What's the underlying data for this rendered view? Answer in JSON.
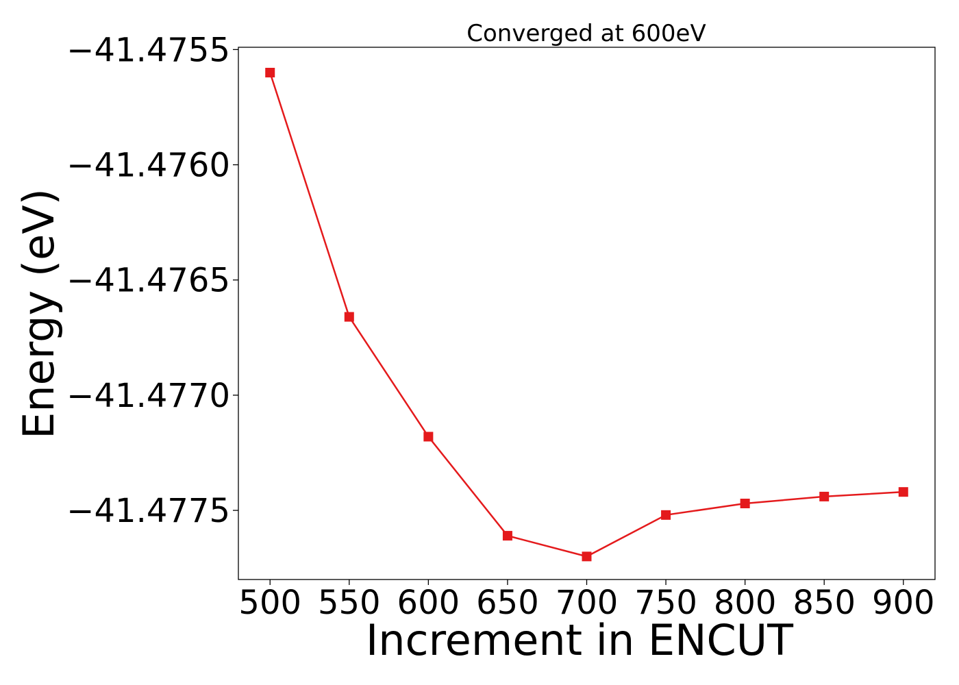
{
  "chart_data": {
    "type": "line",
    "title": "Converged at 600eV",
    "xlabel": "Increment in ENCUT",
    "ylabel": "Energy (eV)",
    "x": [
      500,
      550,
      600,
      650,
      700,
      750,
      800,
      850,
      900
    ],
    "series": [
      {
        "values": [
          -41.4756,
          -41.47666,
          -41.47718,
          -41.47761,
          -41.4777,
          -41.47752,
          -41.47747,
          -41.47744,
          -41.47742
        ],
        "color": "#e41a1c",
        "marker": "square"
      }
    ],
    "xlim": [
      480,
      920
    ],
    "ylim": [
      -41.4778,
      -41.47549
    ],
    "xticks": [
      500,
      550,
      600,
      650,
      700,
      750,
      800,
      850,
      900
    ],
    "xtick_labels": [
      "500",
      "550",
      "600",
      "650",
      "700",
      "750",
      "800",
      "850",
      "900"
    ],
    "yticks": [
      -41.4755,
      -41.476,
      -41.4765,
      -41.477,
      -41.4775
    ],
    "ytick_labels": [
      "−41.4755",
      "−41.4760",
      "−41.4765",
      "−41.4770",
      "−41.4775"
    ],
    "grid": false
  }
}
